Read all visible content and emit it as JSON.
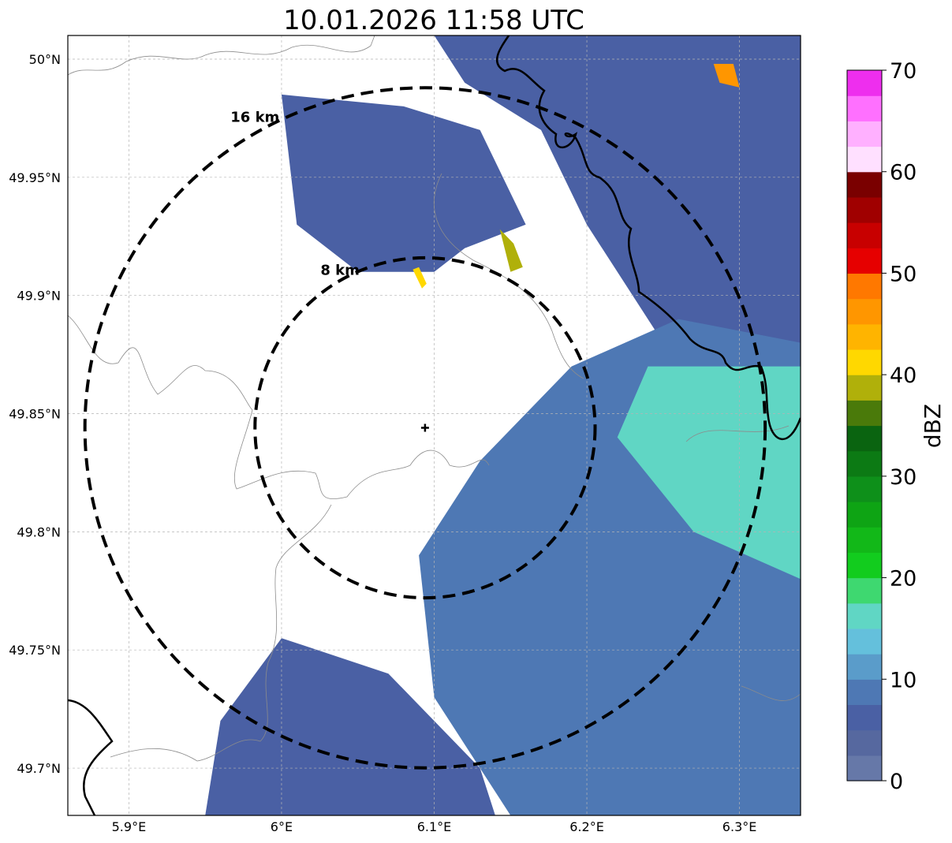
{
  "title": "10.01.2026 11:58 UTC",
  "map": {
    "lon_range": [
      5.86,
      6.34
    ],
    "lat_range": [
      49.68,
      50.01
    ],
    "lon_ticks": [
      {
        "value": 5.9,
        "label": "5.9°E"
      },
      {
        "value": 6.0,
        "label": "6°E"
      },
      {
        "value": 6.1,
        "label": "6.1°E"
      },
      {
        "value": 6.2,
        "label": "6.2°E"
      },
      {
        "value": 6.3,
        "label": "6.3°E"
      }
    ],
    "lat_ticks": [
      {
        "value": 50.0,
        "label": "50°N"
      },
      {
        "value": 49.95,
        "label": "49.95°N"
      },
      {
        "value": 49.9,
        "label": "49.9°N"
      },
      {
        "value": 49.85,
        "label": "49.85°N"
      },
      {
        "value": 49.8,
        "label": "49.8°N"
      },
      {
        "value": 49.75,
        "label": "49.75°N"
      },
      {
        "value": 49.7,
        "label": "49.7°N"
      }
    ],
    "radar_site": {
      "lon": 6.094,
      "lat": 49.844
    },
    "range_rings": [
      {
        "radius_km": 8,
        "label": "8 km"
      },
      {
        "radius_km": 16,
        "label": "16 km"
      }
    ],
    "echo_regions": [
      {
        "name": "northern-precip-band",
        "level_dbz": 5,
        "polygon": [
          [
            6.0,
            49.985
          ],
          [
            6.08,
            49.98
          ],
          [
            6.13,
            49.97
          ],
          [
            6.16,
            49.93
          ],
          [
            6.12,
            49.92
          ],
          [
            6.1,
            49.91
          ],
          [
            6.05,
            49.91
          ],
          [
            6.01,
            49.93
          ]
        ]
      },
      {
        "name": "northeast-precip-band",
        "level_dbz": 7,
        "polygon": [
          [
            6.1,
            50.01
          ],
          [
            6.34,
            50.01
          ],
          [
            6.34,
            49.86
          ],
          [
            6.25,
            49.88
          ],
          [
            6.2,
            49.93
          ],
          [
            6.17,
            49.97
          ],
          [
            6.12,
            49.99
          ]
        ]
      },
      {
        "name": "southeast-precip-band",
        "level_dbz": 8,
        "polygon": [
          [
            6.34,
            49.88
          ],
          [
            6.34,
            49.68
          ],
          [
            6.15,
            49.68
          ],
          [
            6.1,
            49.73
          ],
          [
            6.09,
            49.79
          ],
          [
            6.13,
            49.83
          ],
          [
            6.19,
            49.87
          ],
          [
            6.26,
            49.89
          ]
        ]
      },
      {
        "name": "southwest-precip-band",
        "level_dbz": 5,
        "polygon": [
          [
            6.0,
            49.755
          ],
          [
            6.07,
            49.74
          ],
          [
            6.13,
            49.7
          ],
          [
            6.14,
            49.68
          ],
          [
            5.95,
            49.68
          ],
          [
            5.96,
            49.72
          ]
        ]
      },
      {
        "name": "eastern-moderate-core",
        "level_dbz": 16,
        "polygon": [
          [
            6.24,
            49.87
          ],
          [
            6.34,
            49.87
          ],
          [
            6.34,
            49.78
          ],
          [
            6.27,
            49.8
          ],
          [
            6.22,
            49.84
          ]
        ]
      },
      {
        "name": "convective-cell-north",
        "level_dbz": 45,
        "polygon": [
          [
            6.283,
            49.998
          ],
          [
            6.296,
            49.998
          ],
          [
            6.3,
            49.988
          ],
          [
            6.287,
            49.99
          ]
        ]
      },
      {
        "name": "convective-cell-center",
        "level_dbz": 38,
        "polygon": [
          [
            6.143,
            49.928
          ],
          [
            6.152,
            49.922
          ],
          [
            6.158,
            49.912
          ],
          [
            6.15,
            49.91
          ]
        ]
      },
      {
        "name": "small-cell-west",
        "level_dbz": 42,
        "polygon": [
          [
            6.086,
            49.911
          ],
          [
            6.092,
            49.903
          ],
          [
            6.095,
            49.905
          ],
          [
            6.09,
            49.912
          ]
        ]
      }
    ]
  },
  "colorbar": {
    "label": "dBZ",
    "min": 0,
    "max": 70,
    "ticks": [
      0,
      10,
      20,
      30,
      40,
      50,
      60,
      70
    ],
    "colors": [
      "#6678a8",
      "#56689f",
      "#4a60a4",
      "#4e78b4",
      "#5a9cca",
      "#64c0dc",
      "#60d6c4",
      "#3ed870",
      "#12cc1e",
      "#12b818",
      "#0ea414",
      "#0e901a",
      "#0c7a14",
      "#0a6410",
      "#4a7a0a",
      "#b0b00a",
      "#ffd800",
      "#ffb400",
      "#ff9600",
      "#ff7800",
      "#e60000",
      "#c80000",
      "#a00000",
      "#7a0000",
      "#ffe0ff",
      "#ffb0ff",
      "#ff70ff",
      "#ee2eee"
    ]
  },
  "colors": {
    "border": "#000000",
    "admin_line": "#8c8c8c",
    "grid": "#b4b4b4"
  }
}
